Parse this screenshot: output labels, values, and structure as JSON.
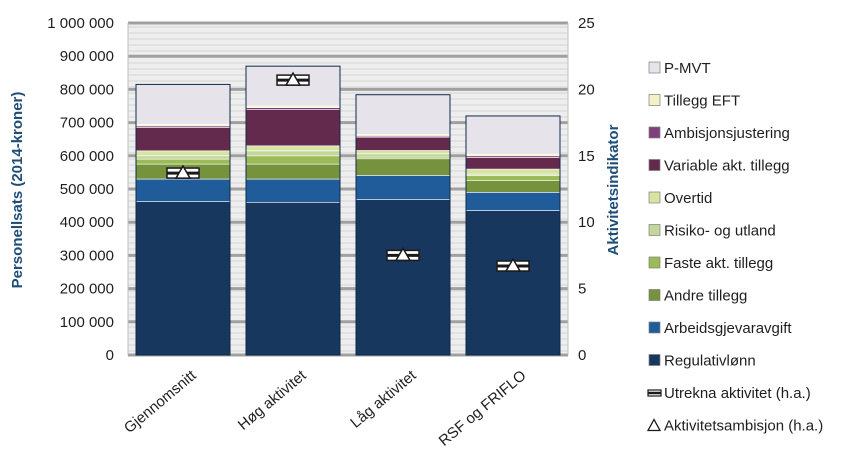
{
  "chart_data": {
    "type": "bar",
    "stacked": true,
    "categories": [
      "Gjennomsnitt",
      "Høg aktivitet",
      "Låg aktivitet",
      "RSF og FRIFLO"
    ],
    "ylabel": "Personellsats (2014-kroner)",
    "y2label": "Aktivitetsindikator",
    "ylim": [
      0,
      1000000
    ],
    "y2lim": [
      0,
      25
    ],
    "yticks": [
      "0",
      "100 000",
      "200 000",
      "300 000",
      "400 000",
      "500 000",
      "600 000",
      "700 000",
      "800 000",
      "900 000",
      "1 000 000"
    ],
    "y2ticks": [
      "0",
      "5",
      "10",
      "15",
      "20",
      "25"
    ],
    "grid": true,
    "legend_position": "right",
    "series": [
      {
        "name": "Regulativlønn",
        "color": "#17375e",
        "values": [
          462000,
          460000,
          468000,
          435000
        ]
      },
      {
        "name": "Arbeidsgjevaravgift",
        "color": "#1f5c99",
        "values": [
          68000,
          70000,
          73000,
          55000
        ]
      },
      {
        "name": "Andre tillegg",
        "color": "#76923c",
        "values": [
          45000,
          45000,
          50000,
          35000
        ]
      },
      {
        "name": "Faste akt. tillegg",
        "color": "#9bbb59",
        "values": [
          15000,
          25000,
          5000,
          15000
        ]
      },
      {
        "name": "Risiko- og utland",
        "color": "#c3d69b",
        "values": [
          10000,
          15000,
          10000,
          5000
        ]
      },
      {
        "name": "Overtid",
        "color": "#d7e4a1",
        "values": [
          15000,
          15000,
          10000,
          15000
        ]
      },
      {
        "name": "Variable akt. tillegg",
        "color": "#632a4d",
        "values": [
          70000,
          110000,
          40000,
          35000
        ]
      },
      {
        "name": "Ambisjonsjustering",
        "color": "#7f3f79",
        "values": [
          5000,
          5000,
          3000,
          5000
        ]
      },
      {
        "name": "Tillegg EFT",
        "color": "#f2f2c6",
        "values": [
          5000,
          5000,
          5000,
          5000
        ]
      },
      {
        "name": "P-MVT",
        "color": "#e6e4ea",
        "values": [
          120000,
          120000,
          120000,
          115000
        ]
      }
    ],
    "line_series": [
      {
        "name": "Utrekna aktivitet (h.a.)",
        "values": [
          13.7,
          20.7,
          7.5,
          6.7
        ]
      },
      {
        "name": "Aktivitetsambisjon (h.a.)",
        "values": [
          13.7,
          20.7,
          7.5,
          6.7
        ]
      }
    ],
    "colors": {
      "axis_title": "#1f4e79",
      "bar_border": "#0f2a4a"
    }
  }
}
